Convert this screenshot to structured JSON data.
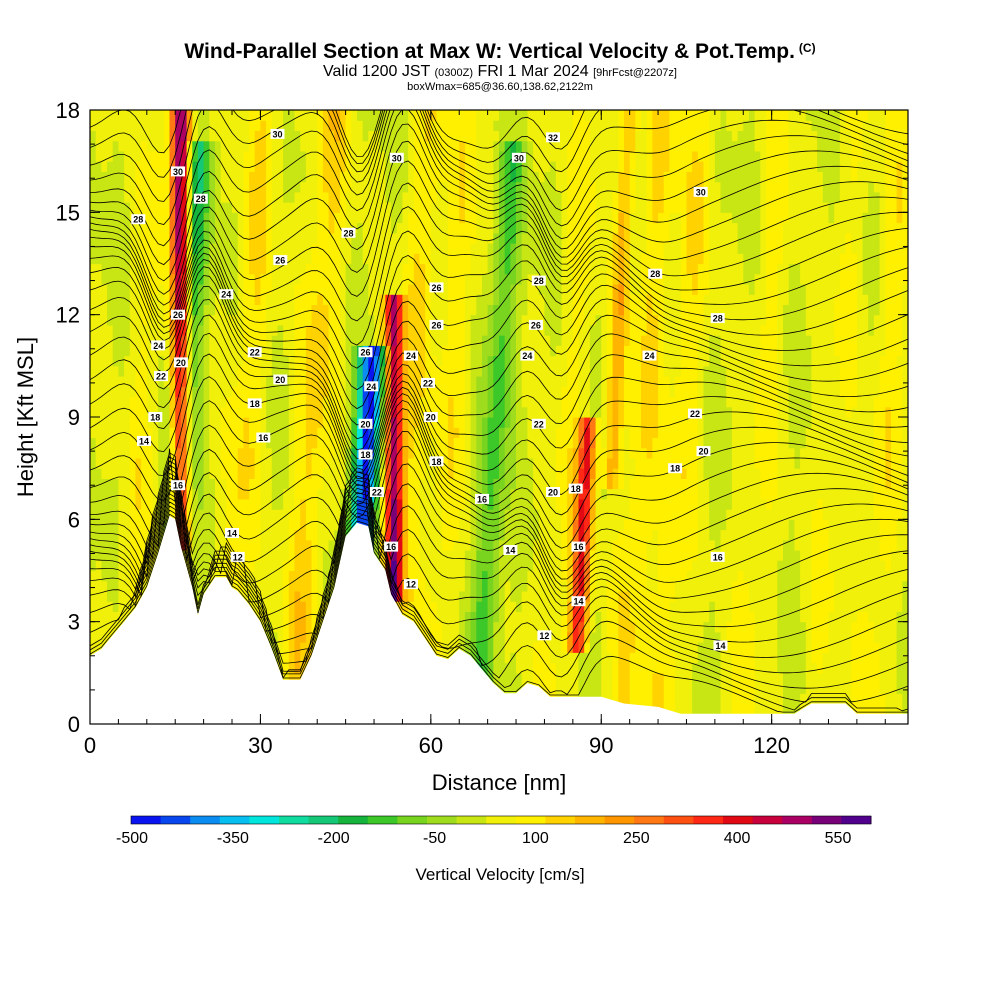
{
  "titles": {
    "main": "Wind-Parallel Section at Max W: Vertical Velocity & Pot.Temp.",
    "copyright": "(C)",
    "valid_prefix": "Valid 1200 JST",
    "valid_utc": "(0300Z)",
    "valid_date": "FRI 1 Mar 2024",
    "forecast": "[9hrFcst@2207z]",
    "box_info": "boxWmax=685@36.60,138.62,2122m"
  },
  "chart_data": {
    "type": "heatmap",
    "xlabel": "Distance [nm]",
    "ylabel": "Height [Kft MSL]",
    "xlim": [
      0,
      144
    ],
    "ylim": [
      0,
      18
    ],
    "x_ticks": [
      0,
      30,
      60,
      90,
      120
    ],
    "y_ticks": [
      0,
      3,
      6,
      9,
      12,
      15,
      18
    ],
    "terrain_kft": [
      [
        0,
        2.0
      ],
      [
        2,
        2.2
      ],
      [
        4,
        2.6
      ],
      [
        6,
        3.0
      ],
      [
        8,
        3.4
      ],
      [
        10,
        4.0
      ],
      [
        12,
        5.0
      ],
      [
        14,
        6.1
      ],
      [
        15,
        6.0
      ],
      [
        16,
        5.2
      ],
      [
        18,
        4.0
      ],
      [
        19,
        3.2
      ],
      [
        20,
        3.8
      ],
      [
        22,
        4.3
      ],
      [
        24,
        4.3
      ],
      [
        25,
        4.0
      ],
      [
        26,
        3.9
      ],
      [
        28,
        3.5
      ],
      [
        30,
        3.0
      ],
      [
        32,
        2.2
      ],
      [
        34,
        1.3
      ],
      [
        37,
        1.3
      ],
      [
        39,
        2.0
      ],
      [
        41,
        3.0
      ],
      [
        43,
        4.0
      ],
      [
        45,
        5.5
      ],
      [
        47,
        5.9
      ],
      [
        49,
        5.8
      ],
      [
        50,
        5.0
      ],
      [
        52,
        4.5
      ],
      [
        53,
        3.8
      ],
      [
        55,
        3.2
      ],
      [
        57,
        3.0
      ],
      [
        59,
        2.5
      ],
      [
        61,
        2.0
      ],
      [
        63,
        1.9
      ],
      [
        65,
        2.2
      ],
      [
        67,
        2.0
      ],
      [
        69,
        1.6
      ],
      [
        71,
        1.2
      ],
      [
        73,
        0.9
      ],
      [
        75,
        0.9
      ],
      [
        77,
        1.2
      ],
      [
        79,
        1.1
      ],
      [
        81,
        0.8
      ],
      [
        83,
        0.8
      ],
      [
        85,
        0.8
      ],
      [
        87,
        0.8
      ],
      [
        90,
        0.8
      ],
      [
        94,
        0.6
      ],
      [
        100,
        0.5
      ],
      [
        104,
        0.3
      ],
      [
        124,
        0.3
      ],
      [
        127,
        0.6
      ],
      [
        133,
        0.6
      ],
      [
        135,
        0.3
      ],
      [
        144,
        0.3
      ]
    ],
    "updraft_cores": [
      {
        "x": 16.0,
        "y_range": [
          6,
          18
        ],
        "w_max_cms": 500
      },
      {
        "x": 53.5,
        "y_range": [
          4.5,
          11.5
        ],
        "w_max_cms": 450
      },
      {
        "x": 86.0,
        "y_range": [
          3,
          8
        ],
        "w_max_cms": 350
      },
      {
        "x": 92.0,
        "y_range": [
          8,
          17
        ],
        "w_max_cms": 150
      }
    ],
    "downdraft_cores": [
      {
        "x": 19.0,
        "y_range": [
          6,
          16
        ],
        "w_min_cms": -200
      },
      {
        "x": 49.5,
        "y_range": [
          5,
          10
        ],
        "w_min_cms": -500
      },
      {
        "x": 74.0,
        "y_range": [
          1,
          16
        ],
        "w_min_cms": -150
      }
    ],
    "contour_labels": [
      {
        "text": "30",
        "x": 33,
        "y": 17.3
      },
      {
        "text": "30",
        "x": 15.5,
        "y": 16.2
      },
      {
        "text": "28",
        "x": 19.5,
        "y": 15.4
      },
      {
        "text": "28",
        "x": 8.5,
        "y": 14.8
      },
      {
        "text": "26",
        "x": 33.5,
        "y": 13.6
      },
      {
        "text": "24",
        "x": 24,
        "y": 12.6
      },
      {
        "text": "26",
        "x": 15.5,
        "y": 12.0
      },
      {
        "text": "24",
        "x": 12,
        "y": 11.1
      },
      {
        "text": "22",
        "x": 12.5,
        "y": 10.2
      },
      {
        "text": "20",
        "x": 16,
        "y": 10.6
      },
      {
        "text": "22",
        "x": 29,
        "y": 10.9
      },
      {
        "text": "20",
        "x": 33.5,
        "y": 10.1
      },
      {
        "text": "18",
        "x": 29,
        "y": 9.4
      },
      {
        "text": "18",
        "x": 11.5,
        "y": 9.0
      },
      {
        "text": "16",
        "x": 30.5,
        "y": 8.4
      },
      {
        "text": "14",
        "x": 9.5,
        "y": 8.3
      },
      {
        "text": "16",
        "x": 15.5,
        "y": 7.0
      },
      {
        "text": "14",
        "x": 25,
        "y": 5.6
      },
      {
        "text": "12",
        "x": 26,
        "y": 4.9
      },
      {
        "text": "30",
        "x": 54,
        "y": 16.6
      },
      {
        "text": "28",
        "x": 45.5,
        "y": 14.4
      },
      {
        "text": "26",
        "x": 61,
        "y": 12.8
      },
      {
        "text": "26",
        "x": 61,
        "y": 11.7
      },
      {
        "text": "26",
        "x": 48.5,
        "y": 10.9
      },
      {
        "text": "24",
        "x": 56.5,
        "y": 10.8
      },
      {
        "text": "24",
        "x": 49.5,
        "y": 9.9
      },
      {
        "text": "22",
        "x": 59.5,
        "y": 10.0
      },
      {
        "text": "20",
        "x": 48.5,
        "y": 8.8
      },
      {
        "text": "20",
        "x": 60,
        "y": 9.0
      },
      {
        "text": "18",
        "x": 48.5,
        "y": 7.9
      },
      {
        "text": "18",
        "x": 61,
        "y": 7.7
      },
      {
        "text": "22",
        "x": 50.5,
        "y": 6.8
      },
      {
        "text": "16",
        "x": 53,
        "y": 5.2
      },
      {
        "text": "12",
        "x": 56.5,
        "y": 4.1
      },
      {
        "text": "30",
        "x": 75.5,
        "y": 16.6
      },
      {
        "text": "32",
        "x": 81.5,
        "y": 17.2
      },
      {
        "text": "28",
        "x": 79,
        "y": 13.0
      },
      {
        "text": "26",
        "x": 78.5,
        "y": 11.7
      },
      {
        "text": "24",
        "x": 77,
        "y": 10.8
      },
      {
        "text": "22",
        "x": 79,
        "y": 8.8
      },
      {
        "text": "16",
        "x": 69,
        "y": 6.6
      },
      {
        "text": "20",
        "x": 81.5,
        "y": 6.8
      },
      {
        "text": "18",
        "x": 85.5,
        "y": 6.9
      },
      {
        "text": "14",
        "x": 74,
        "y": 5.1
      },
      {
        "text": "16",
        "x": 86,
        "y": 5.2
      },
      {
        "text": "14",
        "x": 86,
        "y": 3.6
      },
      {
        "text": "12",
        "x": 80,
        "y": 2.6
      },
      {
        "text": "30",
        "x": 107.5,
        "y": 15.6
      },
      {
        "text": "28",
        "x": 99.5,
        "y": 13.2
      },
      {
        "text": "28",
        "x": 110.5,
        "y": 11.9
      },
      {
        "text": "24",
        "x": 98.5,
        "y": 10.8
      },
      {
        "text": "22",
        "x": 106.5,
        "y": 9.1
      },
      {
        "text": "20",
        "x": 108,
        "y": 8.0
      },
      {
        "text": "18",
        "x": 103,
        "y": 7.5
      },
      {
        "text": "16",
        "x": 110.5,
        "y": 4.9
      },
      {
        "text": "14",
        "x": 111,
        "y": 2.3
      }
    ]
  },
  "colorbar": {
    "title": "Vertical Velocity [cm/s]",
    "labels": [
      "-500",
      "-350",
      "-200",
      "-50",
      "100",
      "250",
      "400",
      "550"
    ],
    "colors": [
      "#0a14f0",
      "#0846f0",
      "#0a8cf0",
      "#06bef0",
      "#00e6dc",
      "#10dca0",
      "#14c878",
      "#16b43c",
      "#3cc828",
      "#78d41e",
      "#a0dc1e",
      "#c8e614",
      "#f0f00a",
      "#fff000",
      "#ffd200",
      "#ffb400",
      "#ff9600",
      "#ff7814",
      "#ff5014",
      "#ff2814",
      "#e10a14",
      "#c8003c",
      "#aa0064",
      "#780078",
      "#50008c"
    ]
  }
}
